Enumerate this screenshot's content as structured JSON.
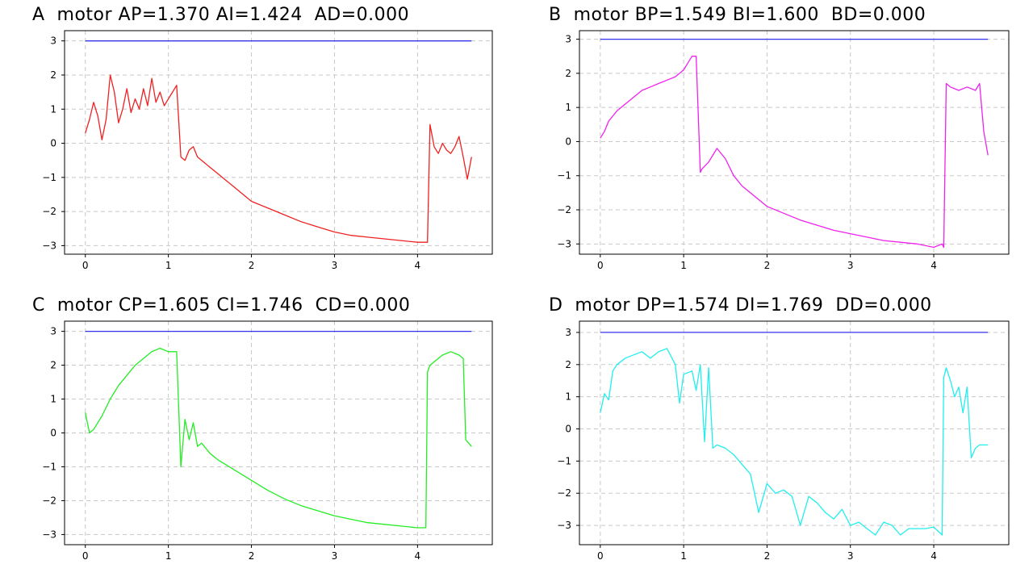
{
  "chart_data": [
    {
      "type": "line",
      "title": "A  motor AP=1.370 AI=1.424  AD=0.000",
      "xlim": [
        -0.25,
        4.9
      ],
      "ylim": [
        -3.25,
        3.3
      ],
      "xticks": [
        0,
        1,
        2,
        3,
        4
      ],
      "yticks": [
        -3,
        -2,
        -1,
        0,
        1,
        2,
        3
      ],
      "grid": true,
      "series": [
        {
          "color": "#3333ee",
          "x": [
            0,
            4.65
          ],
          "y": [
            3,
            3
          ]
        },
        {
          "color": "#ee2222",
          "x": [
            0,
            0.05,
            0.1,
            0.15,
            0.2,
            0.25,
            0.3,
            0.35,
            0.4,
            0.45,
            0.5,
            0.55,
            0.6,
            0.65,
            0.7,
            0.75,
            0.8,
            0.85,
            0.9,
            0.95,
            1.0,
            1.05,
            1.1,
            1.15,
            1.2,
            1.25,
            1.3,
            1.35,
            1.4,
            1.5,
            1.6,
            1.7,
            1.8,
            1.9,
            2.0,
            2.2,
            2.4,
            2.6,
            2.8,
            3.0,
            3.2,
            3.4,
            3.6,
            3.8,
            4.0,
            4.12,
            4.15,
            4.2,
            4.25,
            4.3,
            4.35,
            4.4,
            4.45,
            4.5,
            4.55,
            4.6,
            4.65
          ],
          "y": [
            0.3,
            0.7,
            1.2,
            0.8,
            0.1,
            0.7,
            2.0,
            1.5,
            0.6,
            1.0,
            1.6,
            0.9,
            1.3,
            1.0,
            1.6,
            1.1,
            1.9,
            1.2,
            1.5,
            1.1,
            1.3,
            1.5,
            1.7,
            -0.4,
            -0.5,
            -0.2,
            -0.1,
            -0.4,
            -0.5,
            -0.7,
            -0.9,
            -1.1,
            -1.3,
            -1.5,
            -1.7,
            -1.9,
            -2.1,
            -2.3,
            -2.45,
            -2.6,
            -2.7,
            -2.75,
            -2.8,
            -2.85,
            -2.9,
            -2.9,
            0.55,
            -0.1,
            -0.3,
            0.0,
            -0.2,
            -0.3,
            -0.1,
            0.2,
            -0.4,
            -1.05,
            -0.4
          ]
        }
      ]
    },
    {
      "type": "line",
      "title": "B  motor BP=1.549 BI=1.600  BD=0.000",
      "xlim": [
        -0.25,
        4.9
      ],
      "ylim": [
        -3.3,
        3.25
      ],
      "xticks": [
        0,
        1,
        2,
        3,
        4
      ],
      "yticks": [
        -3,
        -2,
        -1,
        0,
        1,
        2,
        3
      ],
      "grid": true,
      "series": [
        {
          "color": "#3333ee",
          "x": [
            0,
            4.65
          ],
          "y": [
            3,
            3
          ]
        },
        {
          "color": "#ee22ee",
          "x": [
            0,
            0.05,
            0.1,
            0.2,
            0.3,
            0.4,
            0.5,
            0.6,
            0.7,
            0.8,
            0.9,
            1.0,
            1.05,
            1.1,
            1.15,
            1.2,
            1.22,
            1.3,
            1.4,
            1.5,
            1.6,
            1.7,
            1.8,
            2.0,
            2.2,
            2.4,
            2.6,
            2.8,
            3.0,
            3.2,
            3.4,
            3.6,
            3.8,
            4.0,
            4.1,
            4.12,
            4.15,
            4.2,
            4.3,
            4.4,
            4.5,
            4.55,
            4.6,
            4.65
          ],
          "y": [
            0.1,
            0.3,
            0.6,
            0.9,
            1.1,
            1.3,
            1.5,
            1.6,
            1.7,
            1.8,
            1.9,
            2.1,
            2.3,
            2.5,
            2.5,
            -0.9,
            -0.8,
            -0.6,
            -0.2,
            -0.5,
            -1.0,
            -1.3,
            -1.5,
            -1.9,
            -2.1,
            -2.3,
            -2.45,
            -2.6,
            -2.7,
            -2.8,
            -2.9,
            -2.95,
            -3.0,
            -3.1,
            -3.0,
            -3.1,
            1.7,
            1.6,
            1.5,
            1.6,
            1.5,
            1.7,
            0.3,
            -0.4
          ]
        }
      ]
    },
    {
      "type": "line",
      "title": "C  motor CP=1.605 CI=1.746  CD=0.000",
      "xlim": [
        -0.25,
        4.9
      ],
      "ylim": [
        -3.3,
        3.3
      ],
      "xticks": [
        0,
        1,
        2,
        3,
        4
      ],
      "yticks": [
        -3,
        -2,
        -1,
        0,
        1,
        2,
        3
      ],
      "grid": true,
      "series": [
        {
          "color": "#3333ee",
          "x": [
            0,
            4.65
          ],
          "y": [
            3,
            3
          ]
        },
        {
          "color": "#22ee22",
          "x": [
            0,
            0.05,
            0.1,
            0.2,
            0.3,
            0.4,
            0.5,
            0.6,
            0.7,
            0.8,
            0.9,
            1.0,
            1.1,
            1.15,
            1.2,
            1.25,
            1.3,
            1.35,
            1.4,
            1.5,
            1.6,
            1.8,
            2.0,
            2.2,
            2.4,
            2.6,
            2.8,
            3.0,
            3.2,
            3.4,
            3.6,
            3.8,
            4.0,
            4.1,
            4.12,
            4.15,
            4.2,
            4.3,
            4.4,
            4.5,
            4.55,
            4.58,
            4.65
          ],
          "y": [
            0.6,
            0.0,
            0.1,
            0.5,
            1.0,
            1.4,
            1.7,
            2.0,
            2.2,
            2.4,
            2.5,
            2.4,
            2.4,
            -1.0,
            0.4,
            -0.2,
            0.3,
            -0.4,
            -0.3,
            -0.6,
            -0.8,
            -1.1,
            -1.4,
            -1.7,
            -1.95,
            -2.15,
            -2.3,
            -2.45,
            -2.55,
            -2.65,
            -2.7,
            -2.75,
            -2.8,
            -2.8,
            1.8,
            2.0,
            2.1,
            2.3,
            2.4,
            2.3,
            2.2,
            -0.2,
            -0.4
          ]
        }
      ]
    },
    {
      "type": "line",
      "title": "D  motor DP=1.574 DI=1.769  DD=0.000",
      "xlim": [
        -0.25,
        4.9
      ],
      "ylim": [
        -3.6,
        3.35
      ],
      "xticks": [
        0,
        1,
        2,
        3,
        4
      ],
      "yticks": [
        -3,
        -2,
        -1,
        0,
        1,
        2,
        3
      ],
      "grid": true,
      "series": [
        {
          "color": "#3333ee",
          "x": [
            0,
            4.65
          ],
          "y": [
            3,
            3
          ]
        },
        {
          "color": "#22eeee",
          "x": [
            0,
            0.05,
            0.1,
            0.15,
            0.2,
            0.3,
            0.4,
            0.5,
            0.6,
            0.7,
            0.8,
            0.9,
            0.95,
            1.0,
            1.1,
            1.15,
            1.2,
            1.25,
            1.3,
            1.35,
            1.4,
            1.5,
            1.6,
            1.7,
            1.8,
            1.9,
            2.0,
            2.1,
            2.2,
            2.3,
            2.4,
            2.5,
            2.6,
            2.7,
            2.8,
            2.9,
            3.0,
            3.1,
            3.2,
            3.3,
            3.4,
            3.5,
            3.6,
            3.7,
            3.8,
            3.9,
            4.0,
            4.1,
            4.12,
            4.15,
            4.2,
            4.25,
            4.3,
            4.35,
            4.4,
            4.45,
            4.5,
            4.55,
            4.6,
            4.65
          ],
          "y": [
            0.5,
            1.1,
            0.9,
            1.8,
            2.0,
            2.2,
            2.3,
            2.4,
            2.2,
            2.4,
            2.5,
            2.0,
            0.8,
            1.7,
            1.8,
            1.2,
            2.0,
            -0.4,
            1.9,
            -0.6,
            -0.5,
            -0.6,
            -0.8,
            -1.1,
            -1.4,
            -2.6,
            -1.7,
            -2.0,
            -1.9,
            -2.1,
            -3.0,
            -2.1,
            -2.3,
            -2.6,
            -2.8,
            -2.5,
            -3.0,
            -2.9,
            -3.1,
            -3.3,
            -2.9,
            -3.0,
            -3.3,
            -3.1,
            -3.1,
            -3.1,
            -3.05,
            -3.3,
            1.6,
            1.9,
            1.5,
            1.0,
            1.3,
            0.5,
            1.3,
            -0.9,
            -0.6,
            -0.5,
            -0.5,
            -0.5
          ]
        }
      ]
    }
  ]
}
